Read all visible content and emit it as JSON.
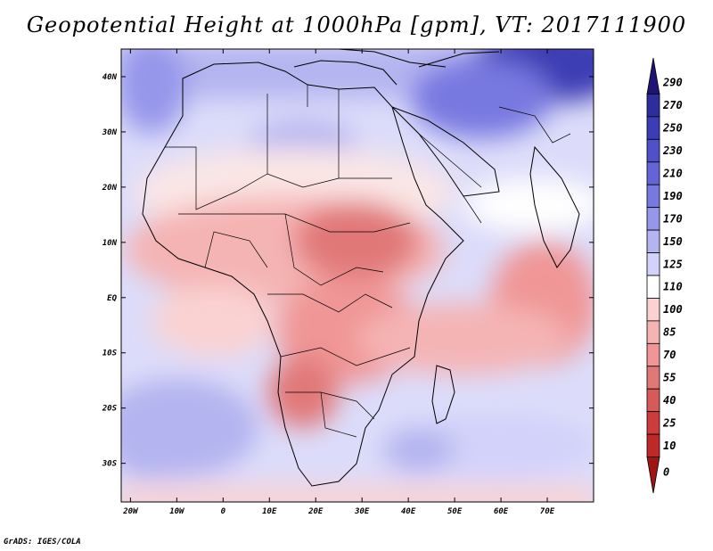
{
  "title": "Geopotential Height at 1000hPa [gpm], VT: 2017111900",
  "credit": "GrADS: IGES/COLA",
  "map": {
    "lon_range": [
      -22,
      80
    ],
    "lat_range": [
      -37,
      45
    ],
    "lon_ticks": [
      "20W",
      "10W",
      "0",
      "10E",
      "20E",
      "30E",
      "40E",
      "50E",
      "60E",
      "70E"
    ],
    "lat_ticks": [
      "40N",
      "30N",
      "20N",
      "10N",
      "EQ",
      "10S",
      "20S",
      "30S"
    ]
  },
  "colorbar": {
    "labels": [
      "290",
      "270",
      "250",
      "230",
      "210",
      "190",
      "170",
      "150",
      "125",
      "110",
      "100",
      "85",
      "70",
      "55",
      "40",
      "25",
      "10",
      "0"
    ],
    "colors": [
      "#1e1478",
      "#2d2d9b",
      "#3c3cb4",
      "#5050c8",
      "#6464d7",
      "#7878e1",
      "#9696eb",
      "#b4b4f0",
      "#d2d2fa",
      "#ffffff",
      "#fad2d2",
      "#f5b4b4",
      "#f09696",
      "#e17878",
      "#d75a5a",
      "#cd3c3c",
      "#be2828",
      "#a01414"
    ]
  }
}
